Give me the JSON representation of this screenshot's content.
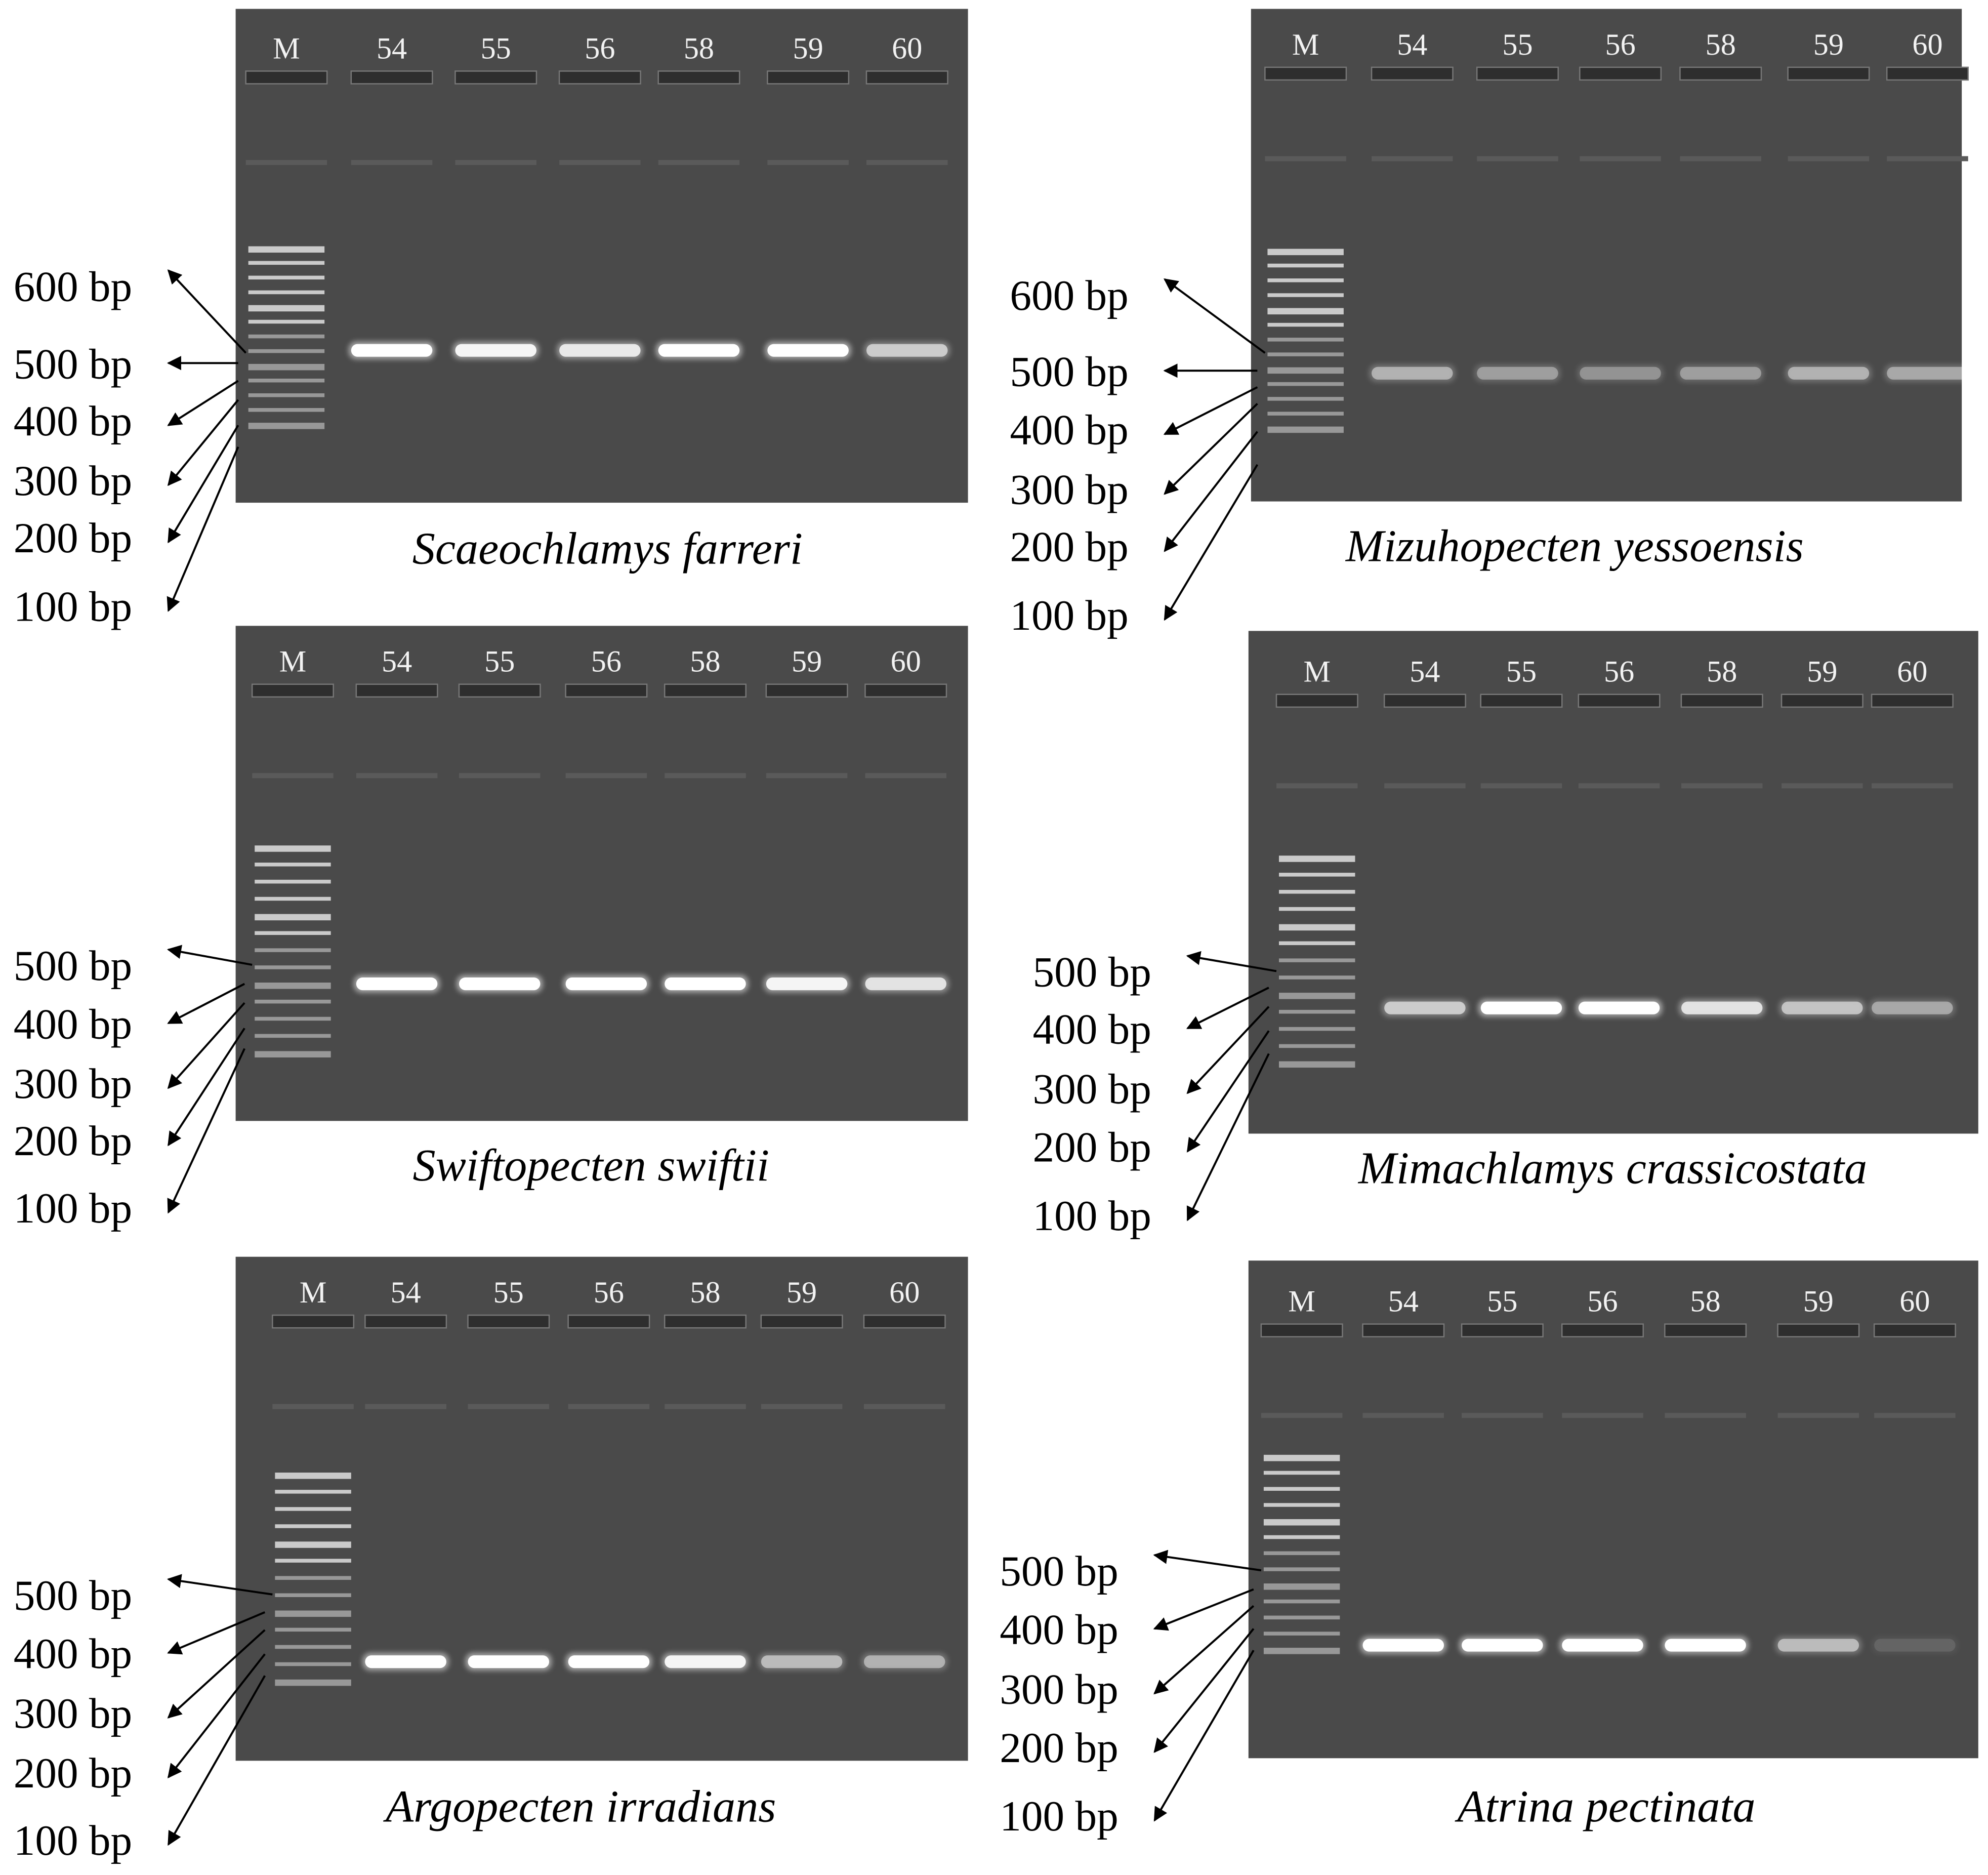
{
  "panels": [
    {
      "species": "Scaeochlamys farreri",
      "lanes": [
        "M",
        "54",
        "55",
        "56",
        "58",
        "59",
        "60"
      ],
      "size_labels": [
        "600 bp",
        "500 bp",
        "400 bp",
        "300 bp",
        "200 bp",
        "100 bp"
      ]
    },
    {
      "species": "Mizuhopecten yessoensis",
      "lanes": [
        "M",
        "54",
        "55",
        "56",
        "58",
        "59",
        "60"
      ],
      "size_labels": [
        "600 bp",
        "500 bp",
        "400 bp",
        "300 bp",
        "200 bp",
        "100 bp"
      ]
    },
    {
      "species": "Swiftopecten swiftii",
      "lanes": [
        "M",
        "54",
        "55",
        "56",
        "58",
        "59",
        "60"
      ],
      "size_labels": [
        "500 bp",
        "400 bp",
        "300 bp",
        "200 bp",
        "100 bp"
      ]
    },
    {
      "species": "Mimachlamys crassicostata",
      "lanes": [
        "M",
        "54",
        "55",
        "56",
        "58",
        "59",
        "60"
      ],
      "size_labels": [
        "500 bp",
        "400 bp",
        "300 bp",
        "200 bp",
        "100 bp"
      ]
    },
    {
      "species": "Argopecten irradians",
      "lanes": [
        "M",
        "54",
        "55",
        "56",
        "58",
        "59",
        "60"
      ],
      "size_labels": [
        "500 bp",
        "400 bp",
        "300 bp",
        "200 bp",
        "100 bp"
      ]
    },
    {
      "species": "Atrina pectinata",
      "lanes": [
        "M",
        "54",
        "55",
        "56",
        "58",
        "59",
        "60"
      ],
      "size_labels": [
        "500 bp",
        "400 bp",
        "300 bp",
        "200 bp",
        "100 bp"
      ]
    }
  ]
}
